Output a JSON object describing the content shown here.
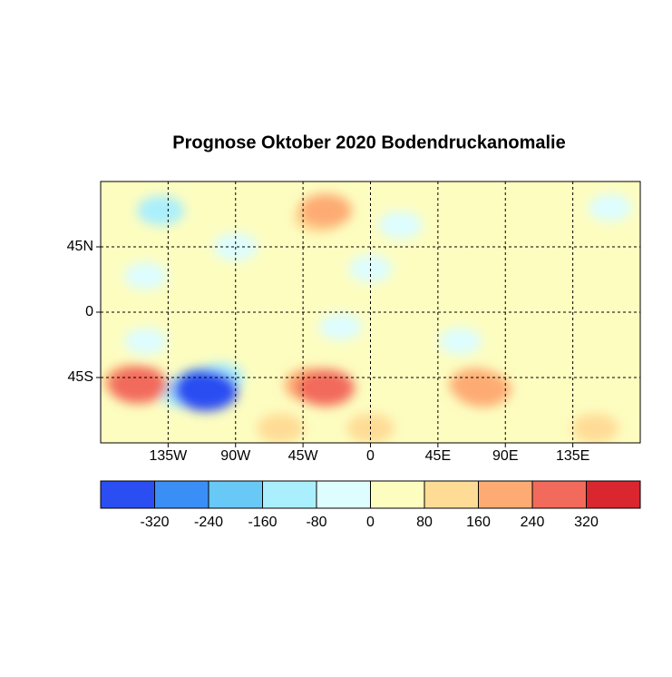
{
  "chart_data": {
    "type": "contour-map",
    "title": "Prognose Oktober 2020 Bodendruckanomalie",
    "xlim": [
      -180,
      180
    ],
    "ylim": [
      -90,
      90
    ],
    "xticks": [
      {
        "value": -135,
        "label": "135W"
      },
      {
        "value": -90,
        "label": "90W"
      },
      {
        "value": -45,
        "label": "45W"
      },
      0,
      {
        "value": 45,
        "label": "45E"
      },
      {
        "value": 90,
        "label": "90E"
      },
      {
        "value": 135,
        "label": "135E"
      }
    ],
    "yticks": [
      {
        "value": 45,
        "label": "45N"
      },
      0,
      {
        "value": -45,
        "label": "45S"
      }
    ],
    "grid": true,
    "fields": [
      {
        "lon": -150,
        "lat": 25,
        "value": -50
      },
      {
        "lon": -90,
        "lat": 45,
        "value": -60
      },
      {
        "lon": -140,
        "lat": 70,
        "value": -100
      },
      {
        "lon": 0,
        "lat": 30,
        "value": -50
      },
      {
        "lon": 20,
        "lat": 60,
        "value": -60
      },
      {
        "lon": 160,
        "lat": 72,
        "value": -50
      },
      {
        "lon": -20,
        "lat": -10,
        "value": -40
      },
      {
        "lon": 60,
        "lat": -20,
        "value": -40
      },
      {
        "lon": -150,
        "lat": -20,
        "value": -40
      },
      {
        "lon": -35,
        "lat": 65,
        "value": 120
      },
      {
        "lon": -30,
        "lat": 70,
        "value": 180
      },
      {
        "lon": 0,
        "lat": -80,
        "value": 100
      },
      {
        "lon": 150,
        "lat": -80,
        "value": 100
      },
      {
        "lon": -60,
        "lat": -80,
        "value": 100
      },
      {
        "lon": -125,
        "lat": -55,
        "value": -130
      },
      {
        "lon": -100,
        "lat": -45,
        "value": -100
      },
      {
        "lon": -112,
        "lat": -50,
        "value": -170
      },
      {
        "lon": -112,
        "lat": -52,
        "value": -250
      },
      {
        "lon": -110,
        "lat": -54,
        "value": -340
      },
      {
        "lon": -160,
        "lat": -48,
        "value": 180
      },
      {
        "lon": -155,
        "lat": -50,
        "value": 260
      },
      {
        "lon": -40,
        "lat": -50,
        "value": 170
      },
      {
        "lon": -30,
        "lat": -52,
        "value": 250
      },
      {
        "lon": 70,
        "lat": -50,
        "value": 170
      },
      {
        "lon": 75,
        "lat": -53,
        "value": 230
      }
    ],
    "colorbar": {
      "boundaries": [
        -400,
        -320,
        -240,
        -160,
        -80,
        0,
        80,
        160,
        240,
        320,
        400
      ],
      "colors": [
        "#2b4ef2",
        "#3b8ef5",
        "#68c9f7",
        "#aaeffd",
        "#ddfdff",
        "#fdfdc0",
        "#fedc96",
        "#fdab73",
        "#f26a5b",
        "#d9262f"
      ],
      "ticks": [
        -320,
        -240,
        -160,
        -80,
        0,
        80,
        160,
        240,
        320
      ]
    }
  }
}
